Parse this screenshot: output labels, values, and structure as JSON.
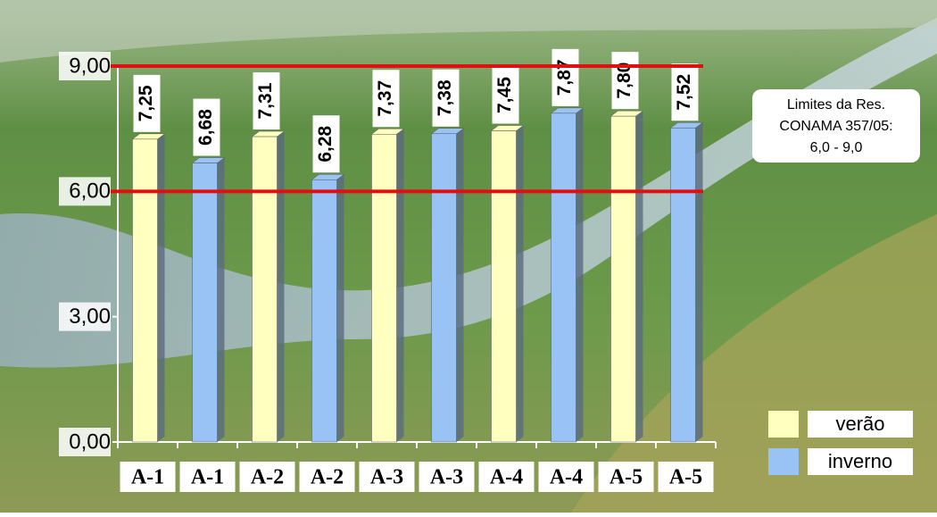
{
  "chart_data": {
    "type": "bar",
    "categories": [
      "A-1",
      "A-1",
      "A-2",
      "A-2",
      "A-3",
      "A-3",
      "A-4",
      "A-4",
      "A-5",
      "A-5"
    ],
    "series": [
      {
        "name": "verão",
        "color": "#ffffc0",
        "values": [
          7.25,
          null,
          7.31,
          null,
          7.37,
          null,
          7.45,
          null,
          7.8,
          null
        ],
        "value_labels": [
          "7,25",
          null,
          "7,31",
          null,
          "7,37",
          null,
          "7,45",
          null,
          "7,80",
          null
        ]
      },
      {
        "name": "inverno",
        "color": "#99c2f5",
        "values": [
          null,
          6.68,
          null,
          6.28,
          null,
          7.38,
          null,
          7.87,
          null,
          7.52
        ],
        "value_labels": [
          null,
          "6,68",
          null,
          "6,28",
          null,
          "7,38",
          null,
          "7,87",
          null,
          "7,52"
        ]
      }
    ],
    "ylim": [
      0,
      9
    ],
    "yticks": [
      {
        "value": 0,
        "label": "0,00"
      },
      {
        "value": 3,
        "label": "3,00"
      },
      {
        "value": 6,
        "label": "6,00"
      },
      {
        "value": 9,
        "label": "9,00"
      }
    ],
    "reference_lines": [
      6,
      9
    ],
    "reference_color": "#e01010",
    "annotation": [
      "Limites da Res.",
      "CONAMA 357/05:",
      "6,0 - 9,0"
    ],
    "legend": "bottom-right"
  }
}
